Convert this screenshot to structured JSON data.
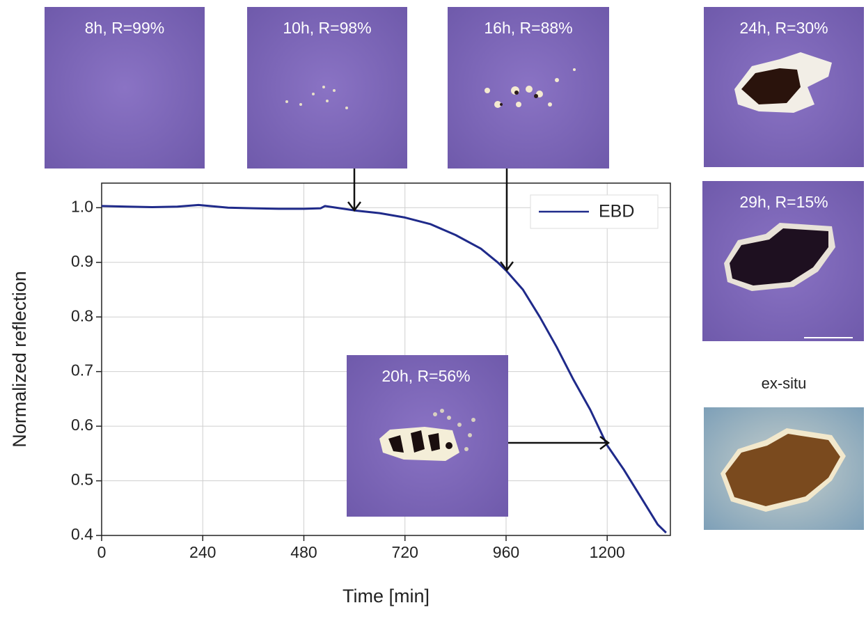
{
  "chart_data": {
    "type": "line",
    "xlabel": "Time [min]",
    "ylabel": "Normalized reflection",
    "x": [
      0,
      60,
      120,
      180,
      230,
      300,
      360,
      420,
      480,
      520,
      530,
      600,
      660,
      720,
      780,
      840,
      900,
      940,
      960,
      1000,
      1040,
      1080,
      1120,
      1160,
      1200,
      1240,
      1280,
      1320,
      1340
    ],
    "series": [
      {
        "name": "EBD",
        "color": "#1f2a8a",
        "values": [
          1.003,
          1.002,
          1.001,
          1.002,
          1.005,
          1.0,
          0.999,
          0.998,
          0.998,
          0.999,
          1.003,
          0.995,
          0.99,
          0.982,
          0.97,
          0.95,
          0.925,
          0.9,
          0.885,
          0.85,
          0.8,
          0.745,
          0.685,
          0.63,
          0.565,
          0.52,
          0.47,
          0.42,
          0.405
        ]
      }
    ],
    "xlim": [
      0,
      1350
    ],
    "ylim": [
      0.4,
      1.045
    ],
    "xticks": [
      0,
      240,
      480,
      720,
      960,
      1200
    ],
    "yticks": [
      0.4,
      0.5,
      0.6,
      0.7,
      0.8,
      0.9,
      {
        "value": 1,
        "label": "1.0"
      }
    ],
    "grid": true,
    "legend": "upper right"
  },
  "insets": [
    "8h, R=99%",
    "10h, R=98%",
    "16h, R=88%",
    "24h, R=30%",
    "29h, R=15%",
    "20h, R=56%"
  ],
  "ex_situ_label": "ex-situ"
}
